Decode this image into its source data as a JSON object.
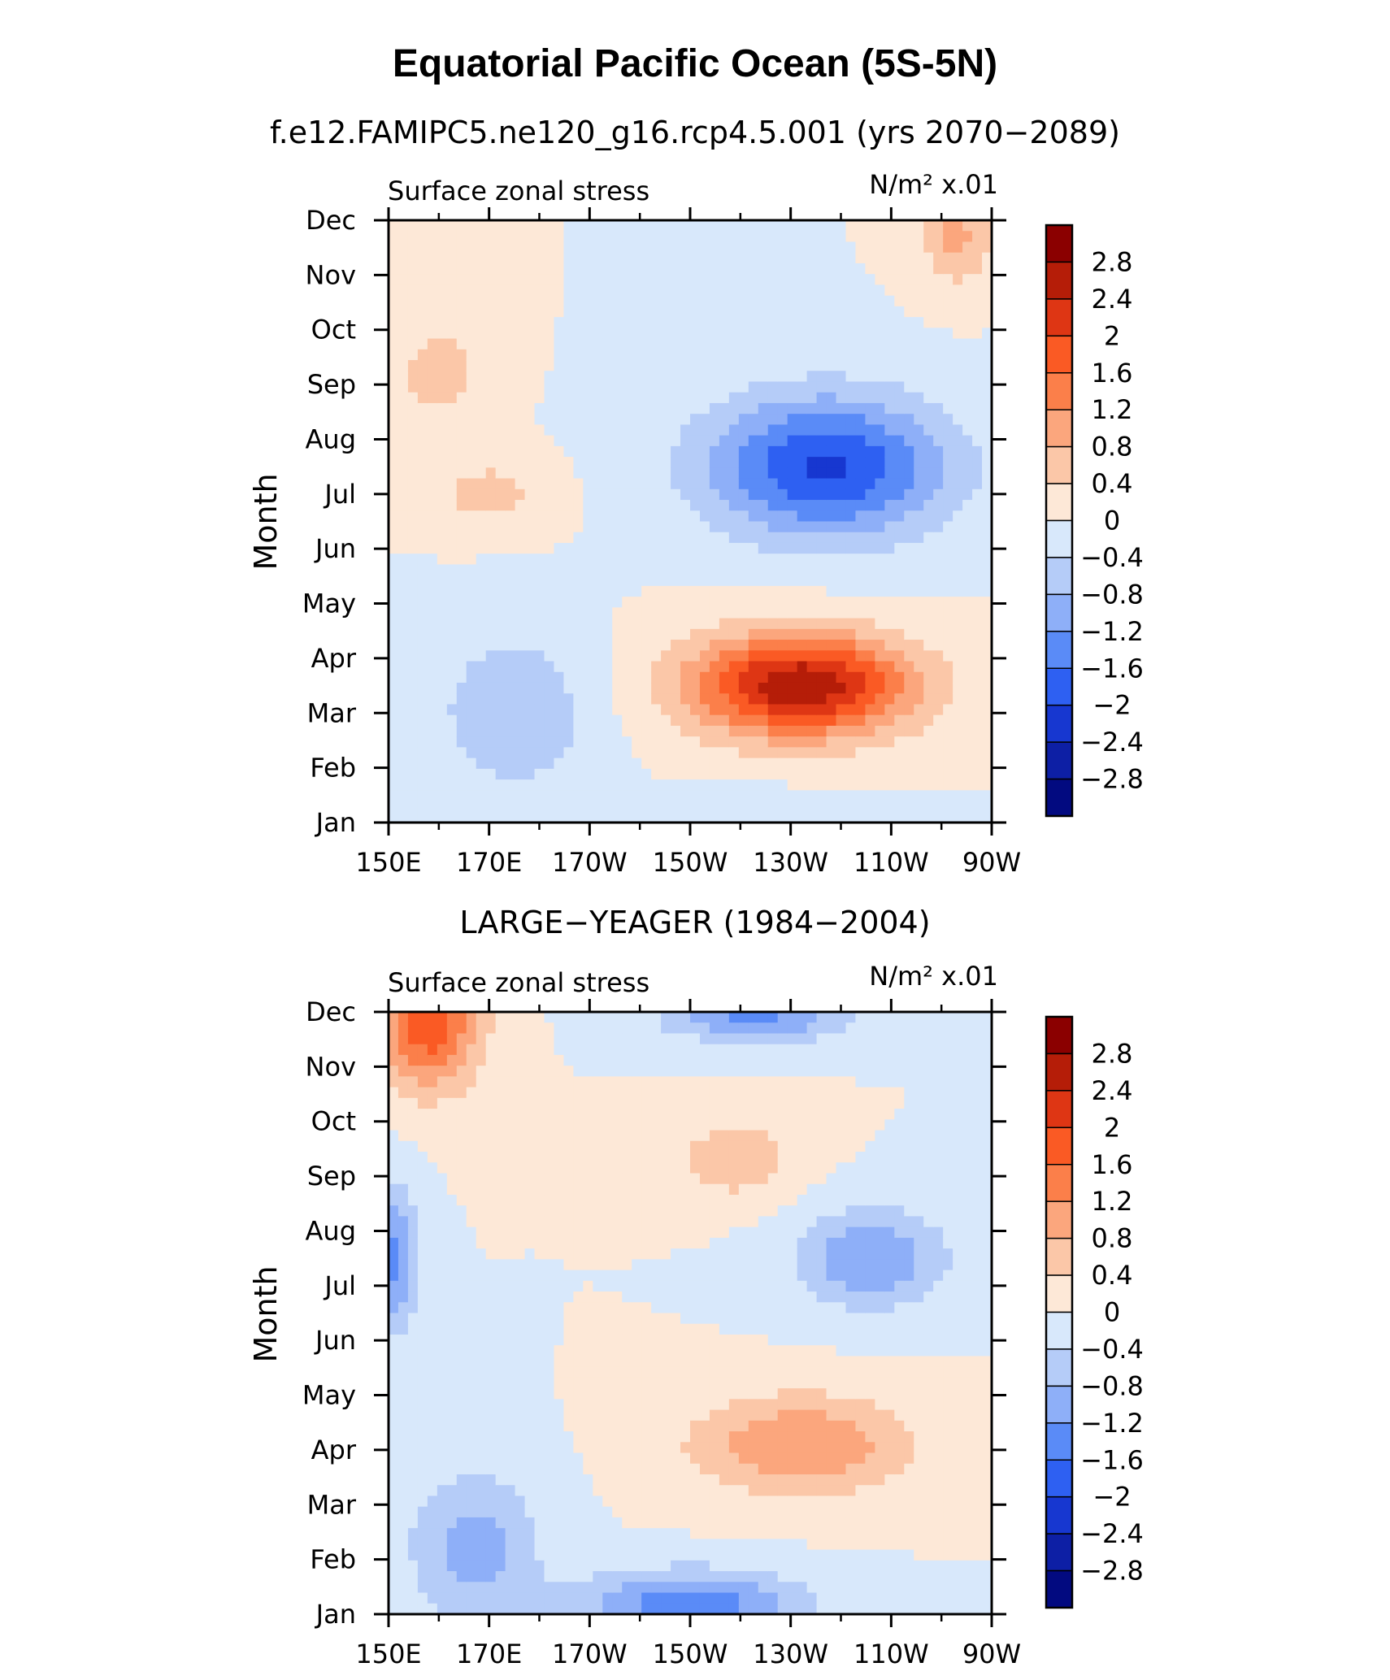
{
  "title": "Equatorial Pacific Ocean (5S-5N)",
  "chart_data": [
    {
      "type": "heatmap",
      "subtitle": "f.e12.FAMIPC5.ne120_g16.rcp4.5.001 (yrs 2070−2089)",
      "left_label": "Surface zonal stress",
      "right_label": "N/m² x.01",
      "xlabel": "",
      "ylabel": "Month",
      "x_ticks": [
        "150E",
        "170E",
        "170W",
        "150W",
        "130W",
        "110W",
        "90W"
      ],
      "y_ticks": [
        "Jan",
        "Feb",
        "Mar",
        "Apr",
        "May",
        "Jun",
        "Jul",
        "Aug",
        "Sep",
        "Oct",
        "Nov",
        "Dec"
      ],
      "xlim": [
        150,
        270
      ],
      "ylim": [
        1,
        12
      ],
      "features": [
        {
          "x": 232,
          "y": 3.5,
          "sx": 22,
          "sy": 0.95,
          "amp": 2.75
        },
        {
          "x": 237,
          "y": 7.5,
          "sx": 24,
          "sy": 1.3,
          "amp": -2.05
        },
        {
          "x": 263,
          "y": 11.7,
          "sx": 7,
          "sy": 0.9,
          "amp": 0.9
        },
        {
          "x": 160,
          "y": 9.2,
          "sx": 9,
          "sy": 1.0,
          "amp": 0.6
        },
        {
          "x": 170,
          "y": 7.0,
          "sx": 11,
          "sy": 0.6,
          "amp": 0.6
        },
        {
          "x": 175,
          "y": 3.0,
          "sx": 15,
          "sy": 1.4,
          "amp": -0.8
        },
        {
          "x": 225,
          "y": 1.1,
          "sx": 25,
          "sy": 0.45,
          "amp": -0.4
        }
      ],
      "colorbar": {
        "levels": [
          2.8,
          2.4,
          2,
          1.6,
          1.2,
          0.8,
          0.4,
          0,
          -0.4,
          -0.8,
          -1.2,
          -1.6,
          -2,
          -2.4,
          -2.8
        ],
        "labels": [
          "2.8",
          "2.4",
          "2",
          "1.6",
          "1.2",
          "0.8",
          "0.4",
          "0",
          "−0.4",
          "−0.8",
          "−1.2",
          "−1.6",
          "−2",
          "−2.4",
          "−2.8"
        ],
        "colors": [
          "#8b0000",
          "#b51d08",
          "#de3614",
          "#fa5a24",
          "#fb7f4a",
          "#fba67d",
          "#fbc7a8",
          "#fde8d7",
          "#d8e8fb",
          "#b5ccf8",
          "#8eaff8",
          "#5a8bf7",
          "#2e60f2",
          "#1737d0",
          "#0d1fa5",
          "#020a80"
        ]
      }
    },
    {
      "type": "heatmap",
      "subtitle": "LARGE−YEAGER (1984−2004)",
      "left_label": "Surface zonal stress",
      "right_label": "N/m² x.01",
      "xlabel": "",
      "ylabel": "Month",
      "x_ticks": [
        "150E",
        "170E",
        "170W",
        "150W",
        "130W",
        "110W",
        "90W"
      ],
      "y_ticks": [
        "Jan",
        "Feb",
        "Mar",
        "Apr",
        "May",
        "Jun",
        "Jul",
        "Aug",
        "Sep",
        "Oct",
        "Nov",
        "Dec"
      ],
      "xlim": [
        150,
        270
      ],
      "ylim": [
        1,
        12
      ],
      "features": [
        {
          "x": 158,
          "y": 11.8,
          "sx": 10,
          "sy": 1.2,
          "amp": 1.9
        },
        {
          "x": 232,
          "y": 4.1,
          "sx": 22,
          "sy": 0.9,
          "amp": 1.2
        },
        {
          "x": 219,
          "y": 9.3,
          "sx": 12,
          "sy": 0.75,
          "amp": 0.7
        },
        {
          "x": 223,
          "y": 11.9,
          "sx": 18,
          "sy": 0.45,
          "amp": -1.3
        },
        {
          "x": 246,
          "y": 7.5,
          "sx": 15,
          "sy": 0.9,
          "amp": -1.2
        },
        {
          "x": 167,
          "y": 2.2,
          "sx": 13,
          "sy": 1.4,
          "amp": -1.0
        },
        {
          "x": 210,
          "y": 1.2,
          "sx": 22,
          "sy": 0.6,
          "amp": -1.5
        },
        {
          "x": 151,
          "y": 7.5,
          "sx": 5,
          "sy": 1.3,
          "amp": -1.3
        }
      ],
      "colorbar": {
        "levels": [
          2.8,
          2.4,
          2,
          1.6,
          1.2,
          0.8,
          0.4,
          0,
          -0.4,
          -0.8,
          -1.2,
          -1.6,
          -2,
          -2.4,
          -2.8
        ],
        "labels": [
          "2.8",
          "2.4",
          "2",
          "1.6",
          "1.2",
          "0.8",
          "0.4",
          "0",
          "−0.4",
          "−0.8",
          "−1.2",
          "−1.6",
          "−2",
          "−2.4",
          "−2.8"
        ],
        "colors": [
          "#8b0000",
          "#b51d08",
          "#de3614",
          "#fa5a24",
          "#fb7f4a",
          "#fba67d",
          "#fbc7a8",
          "#fde8d7",
          "#d8e8fb",
          "#b5ccf8",
          "#8eaff8",
          "#5a8bf7",
          "#2e60f2",
          "#1737d0",
          "#0d1fa5",
          "#020a80"
        ]
      }
    }
  ]
}
